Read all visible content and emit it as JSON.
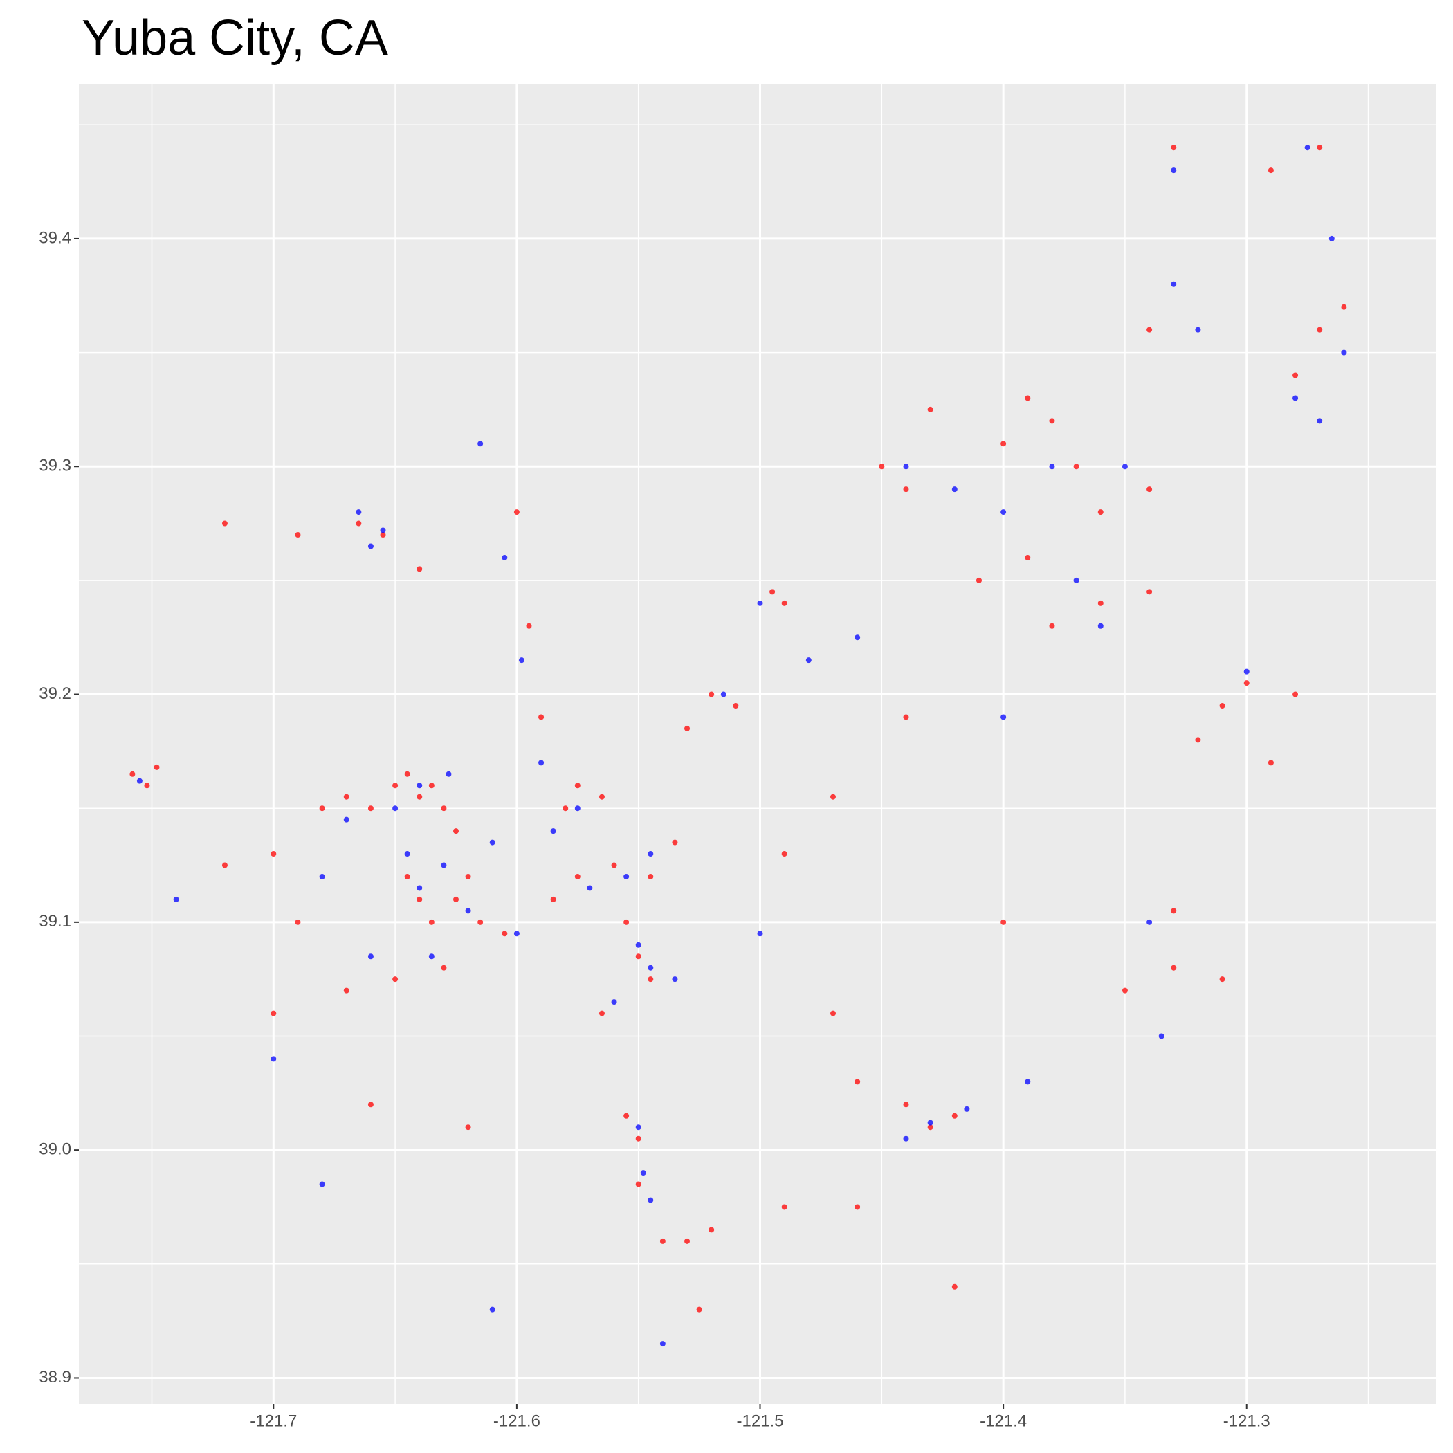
{
  "chart_data": {
    "type": "scatter",
    "title": "Yuba City, CA",
    "xlim": [
      -121.78,
      -121.222
    ],
    "ylim": [
      38.8886,
      39.468
    ],
    "xticks": [
      -121.7,
      -121.6,
      -121.5,
      -121.4,
      -121.3
    ],
    "yticks": [
      38.9,
      {
        "value": 39,
        "label": "39.0"
      },
      39.1,
      39.2,
      39.3,
      39.4
    ],
    "grid": true,
    "series": [
      {
        "color": "#ff0000",
        "x": [
          -121.758,
          -121.752,
          -121.748,
          -121.69,
          -121.72,
          -121.665,
          -121.655,
          -121.64,
          -121.68,
          -121.67,
          -121.66,
          -121.65,
          -121.645,
          -121.64,
          -121.635,
          -121.63,
          -121.625,
          -121.645,
          -121.64,
          -121.635,
          -121.625,
          -121.62,
          -121.615,
          -121.605,
          -121.63,
          -121.65,
          -121.67,
          -121.69,
          -121.7,
          -121.72,
          -121.58,
          -121.575,
          -121.565,
          -121.585,
          -121.575,
          -121.56,
          -121.545,
          -121.535,
          -121.555,
          -121.55,
          -121.545,
          -121.565,
          -121.555,
          -121.55,
          -121.55,
          -121.54,
          -121.53,
          -121.525,
          -121.52,
          -121.59,
          -121.595,
          -121.6,
          -121.62,
          -121.66,
          -121.7,
          -121.51,
          -121.52,
          -121.53,
          -121.495,
          -121.49,
          -121.47,
          -121.49,
          -121.45,
          -121.44,
          -121.43,
          -121.4,
          -121.39,
          -121.38,
          -121.37,
          -121.36,
          -121.34,
          -121.39,
          -121.41,
          -121.38,
          -121.36,
          -121.34,
          -121.43,
          -121.42,
          -121.44,
          -121.46,
          -121.49,
          -121.46,
          -121.35,
          -121.33,
          -121.31,
          -121.33,
          -121.31,
          -121.3,
          -121.28,
          -121.32,
          -121.29,
          -121.27,
          -121.26,
          -121.28,
          -121.29,
          -121.27,
          -121.33,
          -121.34,
          -121.44,
          -121.4,
          -121.47,
          -121.42
        ],
        "y": [
          39.165,
          39.16,
          39.168,
          39.27,
          39.275,
          39.275,
          39.27,
          39.255,
          39.15,
          39.155,
          39.15,
          39.16,
          39.165,
          39.155,
          39.16,
          39.15,
          39.14,
          39.12,
          39.11,
          39.1,
          39.11,
          39.12,
          39.1,
          39.095,
          39.08,
          39.075,
          39.07,
          39.1,
          39.13,
          39.125,
          39.15,
          39.16,
          39.155,
          39.11,
          39.12,
          39.125,
          39.12,
          39.135,
          39.1,
          39.085,
          39.075,
          39.06,
          39.015,
          39.005,
          38.985,
          38.96,
          38.96,
          38.93,
          38.965,
          39.19,
          39.23,
          39.28,
          39.01,
          39.02,
          39.06,
          39.195,
          39.2,
          39.185,
          39.245,
          39.24,
          39.155,
          39.13,
          39.3,
          39.29,
          39.325,
          39.31,
          39.33,
          39.32,
          39.3,
          39.28,
          39.29,
          39.26,
          39.25,
          39.23,
          39.24,
          39.245,
          39.01,
          39.015,
          39.02,
          39.03,
          38.975,
          38.975,
          39.07,
          39.08,
          39.075,
          39.105,
          39.195,
          39.205,
          39.2,
          39.18,
          39.17,
          39.36,
          39.37,
          39.34,
          39.43,
          39.44,
          39.44,
          39.36,
          39.19,
          39.1,
          39.06,
          38.94
        ]
      },
      {
        "color": "#0000ff",
        "x": [
          -121.755,
          -121.665,
          -121.655,
          -121.66,
          -121.65,
          -121.64,
          -121.628,
          -121.645,
          -121.64,
          -121.63,
          -121.62,
          -121.61,
          -121.6,
          -121.635,
          -121.66,
          -121.68,
          -121.67,
          -121.575,
          -121.585,
          -121.57,
          -121.555,
          -121.545,
          -121.55,
          -121.545,
          -121.535,
          -121.56,
          -121.55,
          -121.548,
          -121.545,
          -121.59,
          -121.598,
          -121.605,
          -121.615,
          -121.61,
          -121.54,
          -121.515,
          -121.5,
          -121.48,
          -121.46,
          -121.44,
          -121.42,
          -121.4,
          -121.38,
          -121.35,
          -121.33,
          -121.32,
          -121.37,
          -121.36,
          -121.43,
          -121.415,
          -121.44,
          -121.39,
          -121.335,
          -121.34,
          -121.3,
          -121.28,
          -121.27,
          -121.26,
          -121.265,
          -121.275,
          -121.33,
          -121.4,
          -121.5,
          -121.7,
          -121.68,
          -121.74
        ],
        "y": [
          39.162,
          39.28,
          39.272,
          39.265,
          39.15,
          39.16,
          39.165,
          39.13,
          39.115,
          39.125,
          39.105,
          39.135,
          39.095,
          39.085,
          39.085,
          39.12,
          39.145,
          39.15,
          39.14,
          39.115,
          39.12,
          39.13,
          39.09,
          39.08,
          39.075,
          39.065,
          39.01,
          38.99,
          38.978,
          39.17,
          39.215,
          39.26,
          39.31,
          38.93,
          38.915,
          39.2,
          39.24,
          39.215,
          39.225,
          39.3,
          39.29,
          39.28,
          39.3,
          39.3,
          39.38,
          39.36,
          39.25,
          39.23,
          39.012,
          39.018,
          39.005,
          39.03,
          39.05,
          39.1,
          39.21,
          39.33,
          39.32,
          39.35,
          39.4,
          39.44,
          39.43,
          39.19,
          39.095,
          39.04,
          38.985,
          39.11
        ]
      }
    ]
  }
}
